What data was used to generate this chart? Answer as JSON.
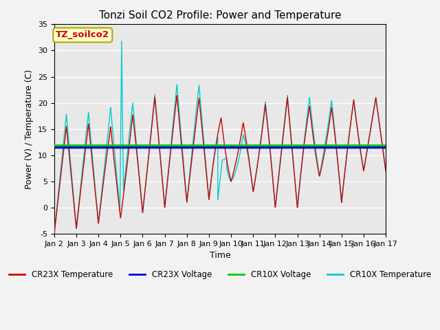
{
  "title": "Tonzi Soil CO2 Profile: Power and Temperature",
  "xlabel": "Time",
  "ylabel": "Power (V) / Temperature (C)",
  "ylim": [
    -5,
    35
  ],
  "yticks": [
    -5,
    0,
    5,
    10,
    15,
    20,
    25,
    30,
    35
  ],
  "xtick_labels": [
    "Jan 2",
    "Jan 3",
    "Jan 4",
    "Jan 5",
    "Jan 6",
    "Jan 7",
    "Jan 8",
    "Jan 9",
    "Jan 10",
    "Jan 11",
    "Jan 12",
    "Jan 13",
    "Jan 14",
    "Jan 15",
    "Jan 16",
    "Jan 17"
  ],
  "cr23x_voltage": 11.5,
  "cr10x_voltage": 11.9,
  "annotation_text": "TZ_soilco2",
  "annotation_box_facecolor": "#FFFFCC",
  "annotation_box_edgecolor": "#AAAA00",
  "annotation_text_color": "#CC0000",
  "cr23x_temp_color": "#CC0000",
  "cr23x_voltage_color": "#0000CC",
  "cr10x_voltage_color": "#00CC00",
  "cr10x_temp_color": "#00CCCC",
  "bg_color": "#E8E8E8",
  "grid_color": "#FFFFFF",
  "legend_labels": [
    "CR23X Temperature",
    "CR23X Voltage",
    "CR10X Voltage",
    "CR10X Temperature"
  ],
  "title_fontsize": 11,
  "axis_fontsize": 9,
  "tick_fontsize": 8,
  "figsize": [
    6.4,
    4.8
  ],
  "dpi": 100
}
